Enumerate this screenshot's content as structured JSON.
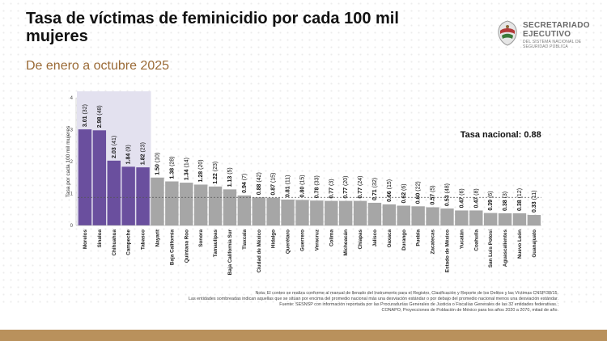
{
  "header": {
    "title": "Tasa de víctimas de feminicidio por cada 100 mil mujeres",
    "subtitle": "De enero a octubre 2025"
  },
  "logo": {
    "line1": "SECRETARIADO",
    "line2": "EJECUTIVO",
    "line3": "DEL SISTEMA NACIONAL DE SEGURIDAD PÚBLICA"
  },
  "colors": {
    "highlight_bar": "#6a4f9e",
    "normal_bar": "#a6a6a6",
    "highlight_band": "#e3e1ef",
    "accent": "#b9915c"
  },
  "chart_data": {
    "type": "bar",
    "ylabel": "Tasa por cada 100 mil mujeres",
    "ylim": [
      0,
      4
    ],
    "yticks": [
      0,
      1,
      2,
      3,
      4
    ],
    "national_rate_label": "Tasa nacional: 0.88",
    "national_rate": 0.88,
    "highlighted": [
      "Morelos",
      "Sinaloa",
      "Chihuahua",
      "Campeche",
      "Tabasco"
    ],
    "categories": [
      "Morelos",
      "Sinaloa",
      "Chihuahua",
      "Campeche",
      "Tabasco",
      "Nayarit",
      "Baja California",
      "Quintana Roo",
      "Sonora",
      "Tamaulipas",
      "Baja California Sur",
      "Tlaxcala",
      "Ciudad de México",
      "Hidalgo",
      "Querétaro",
      "Guerrero",
      "Veracruz",
      "Colima",
      "Michoacán",
      "Chiapas",
      "Jalisco",
      "Oaxaca",
      "Durango",
      "Puebla",
      "Zacatecas",
      "Estado de México",
      "Yucatán",
      "Coahuila",
      "San Luis Potosí",
      "Aguascalientes",
      "Nuevo León",
      "Guanajuato"
    ],
    "values": [
      3.01,
      2.98,
      2.03,
      1.84,
      1.82,
      1.5,
      1.38,
      1.34,
      1.28,
      1.22,
      1.13,
      0.94,
      0.88,
      0.87,
      0.81,
      0.8,
      0.78,
      0.77,
      0.77,
      0.77,
      0.71,
      0.66,
      0.62,
      0.6,
      0.57,
      0.53,
      0.47,
      0.47,
      0.39,
      0.38,
      0.38,
      0.33
    ],
    "value_labels": [
      "3.01",
      "2.98",
      "2.03",
      "1.84",
      "1.82",
      "1.50",
      "1.38",
      "1.34",
      "1.28",
      "1.22",
      "1.13",
      "0.94",
      "0.88",
      "0.87",
      "0.81",
      "0.80",
      "0.78",
      "0.77",
      "0.77",
      "0.77",
      "0.71",
      "0.66",
      "0.62",
      "0.60",
      "0.57",
      "0.53",
      "0.47",
      "0.47",
      "0.39",
      "0.38",
      "0.38",
      "0.33"
    ],
    "counts": [
      "(32)",
      "(48)",
      "(41)",
      "(9)",
      "(23)",
      "(10)",
      "(28)",
      "(14)",
      "(20)",
      "(23)",
      "(5)",
      "(7)",
      "(42)",
      "(15)",
      "(11)",
      "(15)",
      "(33)",
      "(3)",
      "(20)",
      "(24)",
      "(32)",
      "(15)",
      "(6)",
      "(22)",
      "(5)",
      "(48)",
      "(6)",
      "(8)",
      "(6)",
      "(3)",
      "(12)",
      "(11)"
    ]
  },
  "notes": [
    "Nota: El conteo se realiza conforme al manual de llenado del Instrumento para el Registro, Clasificación y Reporte de los Delitos y las Víctimas CNSP/38/15.",
    "Las entidades sombreadas indican aquellas que se sitúan por encima del promedio nacional más una desviación estándar o por debajo del promedio nacional menos una desviación estándar.",
    "Fuente: SESNSP con información reportada por las Procuradurías Generales de Justicia o Fiscalías Generales de las 32 entidades federativas.;",
    "CONAPO, Proyecciones de Población de México para los años 2020 a 2070, mitad de año."
  ]
}
